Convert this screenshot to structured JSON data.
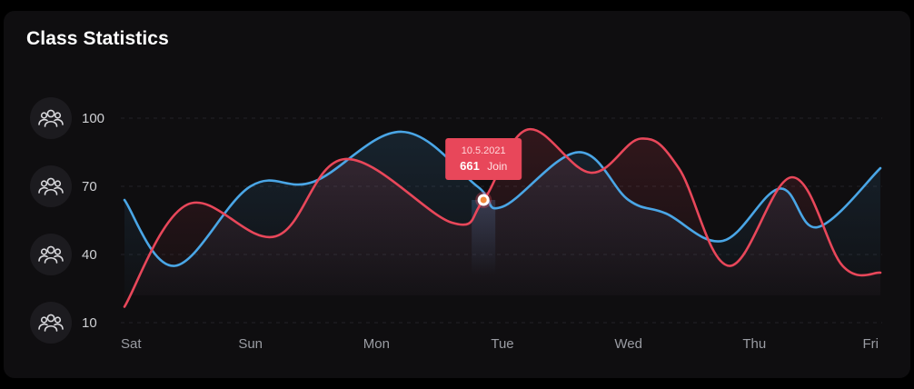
{
  "card": {
    "title": "Class Statistics"
  },
  "colors": {
    "background": "#000000",
    "card": "#0f0e10",
    "series_blue": "#4aa6e6",
    "series_red": "#e8475a",
    "tooltip_bg": "#e8475a",
    "icon_circle": "#1c1b1f",
    "icon_stroke": "#d9d9dd",
    "grid": "#2a2a30"
  },
  "icons": {
    "y_axis_icon": "users-group-icon"
  },
  "tooltip": {
    "date": "10.5.2021",
    "value": "661",
    "unit": "Join"
  },
  "chart_data": {
    "type": "line",
    "title": "Class Statistics",
    "categories": [
      "Sat",
      "Sun",
      "Mon",
      "Tue",
      "Wed",
      "Thu",
      "Fri"
    ],
    "yticks": [
      100,
      70,
      40,
      10
    ],
    "ylim": [
      10,
      100
    ],
    "grid": true,
    "series": [
      {
        "color": "#4aa6e6",
        "points": [
          [
            0.0,
            64
          ],
          [
            0.4,
            35
          ],
          [
            1.0,
            70
          ],
          [
            1.5,
            72
          ],
          [
            2.2,
            94
          ],
          [
            2.8,
            70
          ],
          [
            3.0,
            61
          ],
          [
            3.6,
            85
          ],
          [
            4.0,
            64
          ],
          [
            4.3,
            58
          ],
          [
            4.75,
            46
          ],
          [
            5.2,
            69
          ],
          [
            5.5,
            52
          ],
          [
            6.0,
            78
          ]
        ]
      },
      {
        "color": "#e8475a",
        "points": [
          [
            0.0,
            17
          ],
          [
            0.5,
            62
          ],
          [
            1.2,
            48
          ],
          [
            1.75,
            82
          ],
          [
            2.6,
            54
          ],
          [
            2.85,
            64
          ],
          [
            3.2,
            95
          ],
          [
            3.7,
            76
          ],
          [
            4.1,
            91
          ],
          [
            4.4,
            78
          ],
          [
            4.8,
            35
          ],
          [
            5.3,
            74
          ],
          [
            5.7,
            35
          ],
          [
            6.0,
            32
          ]
        ]
      }
    ],
    "highlight": {
      "x": 2.85,
      "y": 64,
      "value": 661,
      "label": "Join",
      "date": "10.5.2021"
    }
  }
}
